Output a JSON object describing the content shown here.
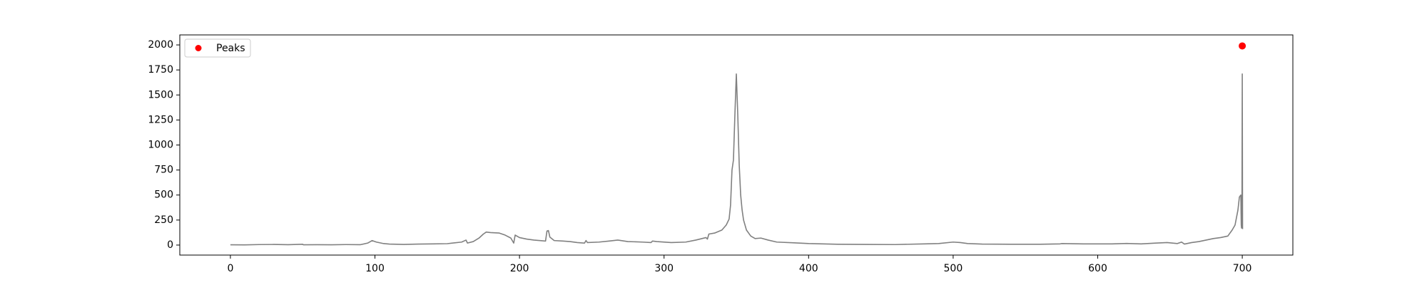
{
  "chart_data": {
    "type": "line",
    "title": "",
    "xlabel": "",
    "ylabel": "",
    "xlim": [
      -35,
      735
    ],
    "ylim": [
      -100,
      2100
    ],
    "x_ticks": [
      0,
      100,
      200,
      300,
      400,
      500,
      600,
      700
    ],
    "y_ticks": [
      0,
      250,
      500,
      750,
      1000,
      1250,
      1500,
      1750,
      2000
    ],
    "grid": false,
    "legend": {
      "position": "upper-left",
      "entries": [
        {
          "label": "Peaks",
          "marker": "circle",
          "color": "#ff0000"
        }
      ]
    },
    "colors": {
      "signal": "#808080",
      "peaks": "#ff0000"
    },
    "series": [
      {
        "points": [
          [
            0,
            3
          ],
          [
            10,
            2
          ],
          [
            20,
            5
          ],
          [
            30,
            6
          ],
          [
            40,
            4
          ],
          [
            50,
            8
          ],
          [
            50.5,
            3
          ],
          [
            60,
            4
          ],
          [
            70,
            3
          ],
          [
            80,
            5
          ],
          [
            90,
            4
          ],
          [
            95,
            20
          ],
          [
            98,
            45
          ],
          [
            101,
            30
          ],
          [
            106,
            15
          ],
          [
            110,
            10
          ],
          [
            115,
            8
          ],
          [
            120,
            6
          ],
          [
            130,
            10
          ],
          [
            140,
            12
          ],
          [
            150,
            14
          ],
          [
            160,
            30
          ],
          [
            163,
            50
          ],
          [
            164,
            20
          ],
          [
            168,
            35
          ],
          [
            172,
            70
          ],
          [
            175,
            110
          ],
          [
            177,
            130
          ],
          [
            180,
            125
          ],
          [
            186,
            120
          ],
          [
            190,
            100
          ],
          [
            194,
            70
          ],
          [
            196,
            20
          ],
          [
            197,
            100
          ],
          [
            200,
            75
          ],
          [
            205,
            60
          ],
          [
            210,
            50
          ],
          [
            218,
            40
          ],
          [
            219,
            140
          ],
          [
            220,
            145
          ],
          [
            221,
            80
          ],
          [
            224,
            45
          ],
          [
            230,
            40
          ],
          [
            235,
            35
          ],
          [
            240,
            25
          ],
          [
            245,
            20
          ],
          [
            246,
            45
          ],
          [
            247,
            25
          ],
          [
            255,
            30
          ],
          [
            262,
            40
          ],
          [
            268,
            50
          ],
          [
            275,
            35
          ],
          [
            285,
            30
          ],
          [
            291,
            25
          ],
          [
            292,
            40
          ],
          [
            295,
            35
          ],
          [
            305,
            25
          ],
          [
            315,
            30
          ],
          [
            322,
            50
          ],
          [
            329,
            75
          ],
          [
            330,
            60
          ],
          [
            331,
            110
          ],
          [
            335,
            120
          ],
          [
            340,
            150
          ],
          [
            343,
            200
          ],
          [
            345,
            260
          ],
          [
            346,
            400
          ],
          [
            347,
            750
          ],
          [
            348,
            850
          ],
          [
            349,
            1300
          ],
          [
            350,
            1710
          ],
          [
            351,
            1300
          ],
          [
            352,
            800
          ],
          [
            353,
            500
          ],
          [
            354,
            350
          ],
          [
            355,
            250
          ],
          [
            357,
            150
          ],
          [
            360,
            90
          ],
          [
            363,
            65
          ],
          [
            367,
            70
          ],
          [
            372,
            50
          ],
          [
            378,
            30
          ],
          [
            390,
            22
          ],
          [
            400,
            15
          ],
          [
            410,
            12
          ],
          [
            420,
            8
          ],
          [
            440,
            6
          ],
          [
            460,
            5
          ],
          [
            480,
            12
          ],
          [
            490,
            15
          ],
          [
            500,
            30
          ],
          [
            505,
            25
          ],
          [
            510,
            15
          ],
          [
            520,
            10
          ],
          [
            540,
            8
          ],
          [
            560,
            8
          ],
          [
            574,
            12
          ],
          [
            575,
            15
          ],
          [
            590,
            12
          ],
          [
            610,
            12
          ],
          [
            620,
            16
          ],
          [
            630,
            12
          ],
          [
            640,
            20
          ],
          [
            648,
            25
          ],
          [
            655,
            15
          ],
          [
            658,
            30
          ],
          [
            660,
            10
          ],
          [
            665,
            25
          ],
          [
            670,
            35
          ],
          [
            675,
            50
          ],
          [
            680,
            65
          ],
          [
            685,
            75
          ],
          [
            690,
            90
          ],
          [
            693,
            150
          ],
          [
            695,
            200
          ],
          [
            697,
            350
          ],
          [
            698,
            480
          ],
          [
            699,
            500
          ],
          [
            699.3,
            200
          ],
          [
            699.5,
            170
          ],
          [
            699.8,
            450
          ],
          [
            700,
            1710
          ],
          [
            700.2,
            160
          ]
        ]
      },
      {
        "name": "Peaks",
        "marker": "circle",
        "points": [
          [
            700,
            1990
          ]
        ]
      }
    ]
  }
}
